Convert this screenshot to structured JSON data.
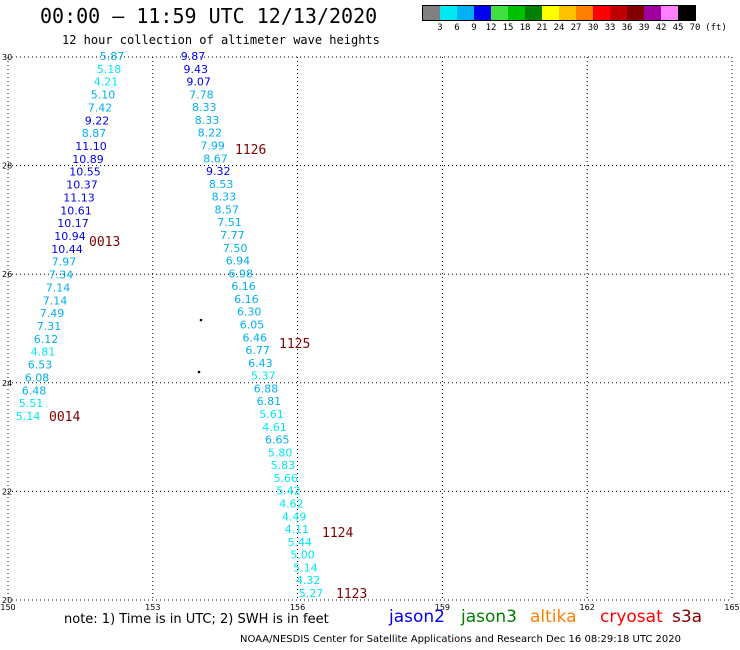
{
  "title": "00:00 – 11:59 UTC 12/13/2020",
  "subtitle": "12 hour collection of altimeter wave heights",
  "color_legend": {
    "unit": "(ft)",
    "labels": [
      "3",
      "6",
      "9",
      "12",
      "15",
      "18",
      "21",
      "24",
      "27",
      "30",
      "33",
      "36",
      "39",
      "42",
      "45",
      "70"
    ],
    "colors": [
      "#808080",
      "#00e8f0",
      "#00b0f0",
      "#0000f0",
      "#40e040",
      "#00c000",
      "#008000",
      "#ffff00",
      "#ffc000",
      "#ff8000",
      "#ff0000",
      "#c00000",
      "#800000",
      "#a000a0",
      "#ff80ff",
      "#000000"
    ]
  },
  "map": {
    "lat_ticks": [
      "20",
      "22",
      "24",
      "26",
      "28",
      "30"
    ],
    "lon_ticks": [
      "150",
      "153",
      "156",
      "159",
      "162",
      "165"
    ],
    "lat_range": [
      20,
      30
    ],
    "lon_range": [
      150,
      165
    ]
  },
  "tracks": {
    "track_a": {
      "values": [
        "5.87",
        "5.18",
        "4.21",
        "5.10",
        "7.42",
        "9.22",
        "8.87",
        "11.10",
        "10.89",
        "10.55",
        "10.37",
        "11.13",
        "10.61",
        "10.17",
        "10.94",
        "10.44",
        "7.97",
        "7.34",
        "7.14",
        "7.14",
        "7.49",
        "7.31",
        "6.12",
        "4.81",
        "6.53",
        "6.08",
        "6.48",
        "5.51",
        "5.14"
      ],
      "colors": [
        "#00b0f0",
        "#00e8f0",
        "#00e8f0",
        "#00b0f0",
        "#00b0f0",
        "#0000f0",
        "#00b0f0",
        "#0000f0",
        "#0000f0",
        "#0000f0",
        "#0000f0",
        "#0000f0",
        "#0000f0",
        "#0000f0",
        "#0000f0",
        "#0000f0",
        "#00b0f0",
        "#00b0f0",
        "#00b0f0",
        "#00b0f0",
        "#00b0f0",
        "#00b0f0",
        "#00b0f0",
        "#00e8f0",
        "#00b0f0",
        "#00b0f0",
        "#00b0f0",
        "#00e8f0",
        "#00e8f0"
      ],
      "times": [
        {
          "label": "0013"
        },
        {
          "label": "0014"
        }
      ]
    },
    "track_b": {
      "values": [
        "9.87",
        "9.43",
        "9.07",
        "7.78",
        "8.33",
        "8.33",
        "8.22",
        "7.99",
        "8.67",
        "9.32",
        "8.53",
        "8.33",
        "8.57",
        "7.51",
        "7.77",
        "7.50",
        "6.94",
        "6.98",
        "6.16",
        "6.16",
        "6.30",
        "6.05",
        "6.46",
        "6.77",
        "6.43",
        "5.37",
        "6.88",
        "6.81",
        "5.61",
        "4.61",
        "6.65",
        "5.80",
        "5.83",
        "5.66",
        "5.42",
        "4.62",
        "4.49",
        "4.11",
        "5.44",
        "5.00",
        "5.14",
        "4.32",
        "5.27"
      ],
      "colors": [
        "#0000f0",
        "#0000f0",
        "#0000f0",
        "#00b0f0",
        "#00b0f0",
        "#00b0f0",
        "#00b0f0",
        "#00b0f0",
        "#00b0f0",
        "#0000f0",
        "#00b0f0",
        "#00b0f0",
        "#00b0f0",
        "#00b0f0",
        "#00b0f0",
        "#00b0f0",
        "#00b0f0",
        "#00b0f0",
        "#00b0f0",
        "#00b0f0",
        "#00b0f0",
        "#00b0f0",
        "#00b0f0",
        "#00b0f0",
        "#00b0f0",
        "#00e8f0",
        "#00b0f0",
        "#00b0f0",
        "#00e8f0",
        "#00e8f0",
        "#00b0f0",
        "#00e8f0",
        "#00e8f0",
        "#00e8f0",
        "#00e8f0",
        "#00e8f0",
        "#00e8f0",
        "#00e8f0",
        "#00e8f0",
        "#00e8f0",
        "#00e8f0",
        "#00e8f0",
        "#00e8f0"
      ],
      "times": [
        {
          "label": "1126"
        },
        {
          "label": "1125"
        },
        {
          "label": "1124"
        },
        {
          "label": "1123"
        }
      ]
    }
  },
  "note": "note:  1) Time is in UTC; 2) SWH is in feet",
  "satellites": [
    {
      "name": "jason2",
      "color": "#0000f0"
    },
    {
      "name": "jason3",
      "color": "#008000"
    },
    {
      "name": "altika",
      "color": "#ff8000"
    },
    {
      "name": "cryosat",
      "color": "#ff0000"
    },
    {
      "name": "s3a",
      "color": "#800000"
    }
  ],
  "credit": "NOAA/NESDIS Center for Satellite Applications and Research    Dec 16 08:29:18 UTC 2020"
}
